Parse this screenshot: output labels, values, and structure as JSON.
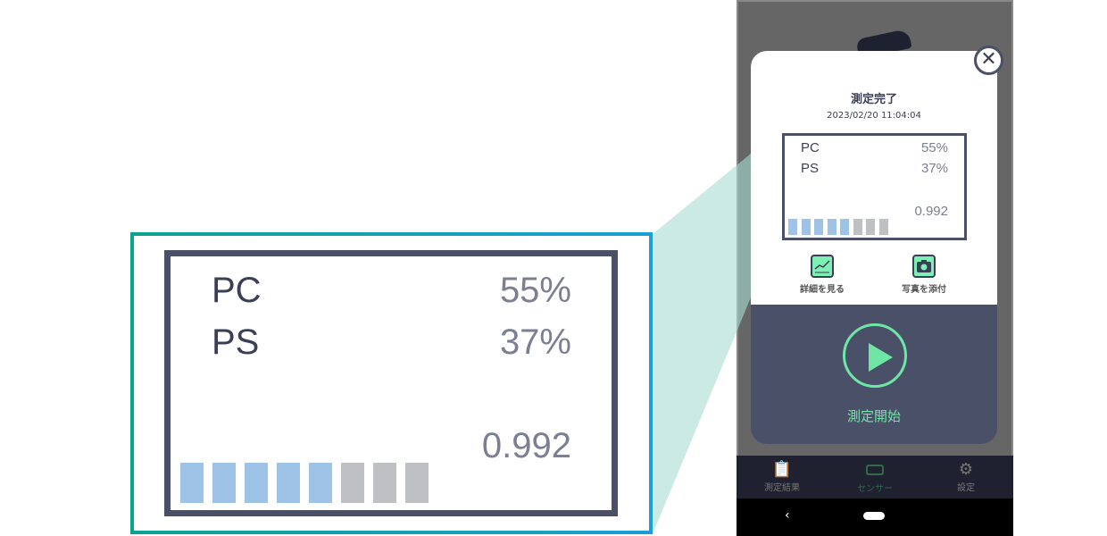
{
  "colors": {
    "accent_green": "#6ee7a6",
    "panel": "#4b5069",
    "bar_active": "#9fc3e7",
    "bar_inactive": "#bfc0c4",
    "zoom_border_start": "#0aa38f",
    "zoom_border_end": "#1a9fd6"
  },
  "modal": {
    "title": "測定完了",
    "timestamp": "2023/02/20  11:04:04",
    "result": {
      "rows": [
        {
          "label": "PC",
          "value": "55%"
        },
        {
          "label": "PS",
          "value": "37%"
        }
      ],
      "score": "0.992",
      "level_segments_total": 8,
      "level_segments_filled": 5
    },
    "actions": [
      {
        "label": "詳細を見る",
        "icon": "chart-icon"
      },
      {
        "label": "写真を添付",
        "icon": "camera-icon"
      }
    ],
    "start_label": "測定開始",
    "close_icon": "close-icon"
  },
  "nav": [
    {
      "label": "測定結果",
      "icon": "clipboard-chart-icon",
      "active": false
    },
    {
      "label": "センサー",
      "icon": "sensor-icon",
      "active": true
    },
    {
      "label": "設定",
      "icon": "gear-icon",
      "active": false
    }
  ]
}
